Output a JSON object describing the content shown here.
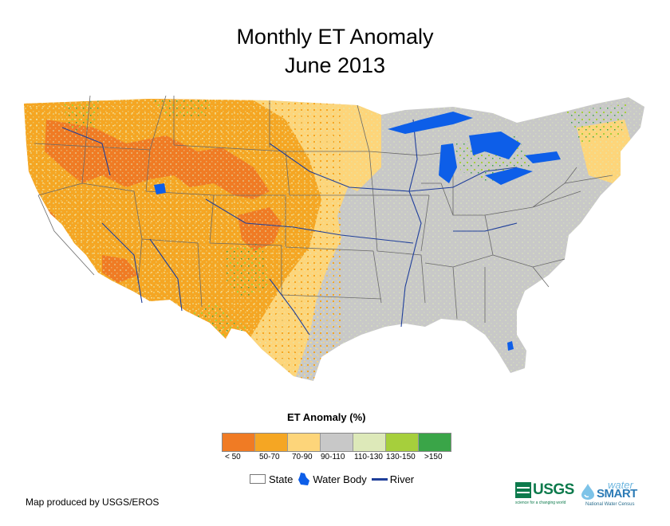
{
  "title": {
    "line1": "Monthly ET Anomaly",
    "line2": "June 2013"
  },
  "legend": {
    "title": "ET Anomaly (%)",
    "classes": [
      {
        "label": "< 50",
        "color": "#f07b24"
      },
      {
        "label": "50-70",
        "color": "#f5a623"
      },
      {
        "label": "70-90",
        "color": "#fdd57a"
      },
      {
        "label": "90-110",
        "color": "#c8c8c8"
      },
      {
        "label": "110-130",
        "color": "#dde9b9"
      },
      {
        "label": "130-150",
        "color": "#a6cf3c"
      },
      {
        "label": ">150",
        "color": "#3aa548"
      }
    ]
  },
  "reference_legend": {
    "state": "State",
    "water_body": "Water Body",
    "river": "River"
  },
  "colors": {
    "water": "#0d5ee8",
    "river": "#1f3f9a",
    "state_line": "#6a6a6a",
    "ocean": "#ffffff"
  },
  "credit": "Map produced by USGS/EROS",
  "logos": {
    "usgs": "USGS",
    "usgs_tagline": "science for a changing world",
    "watersmart_prefix": "water",
    "watersmart": "SMART",
    "watersmart_tagline": "National Water Census"
  }
}
